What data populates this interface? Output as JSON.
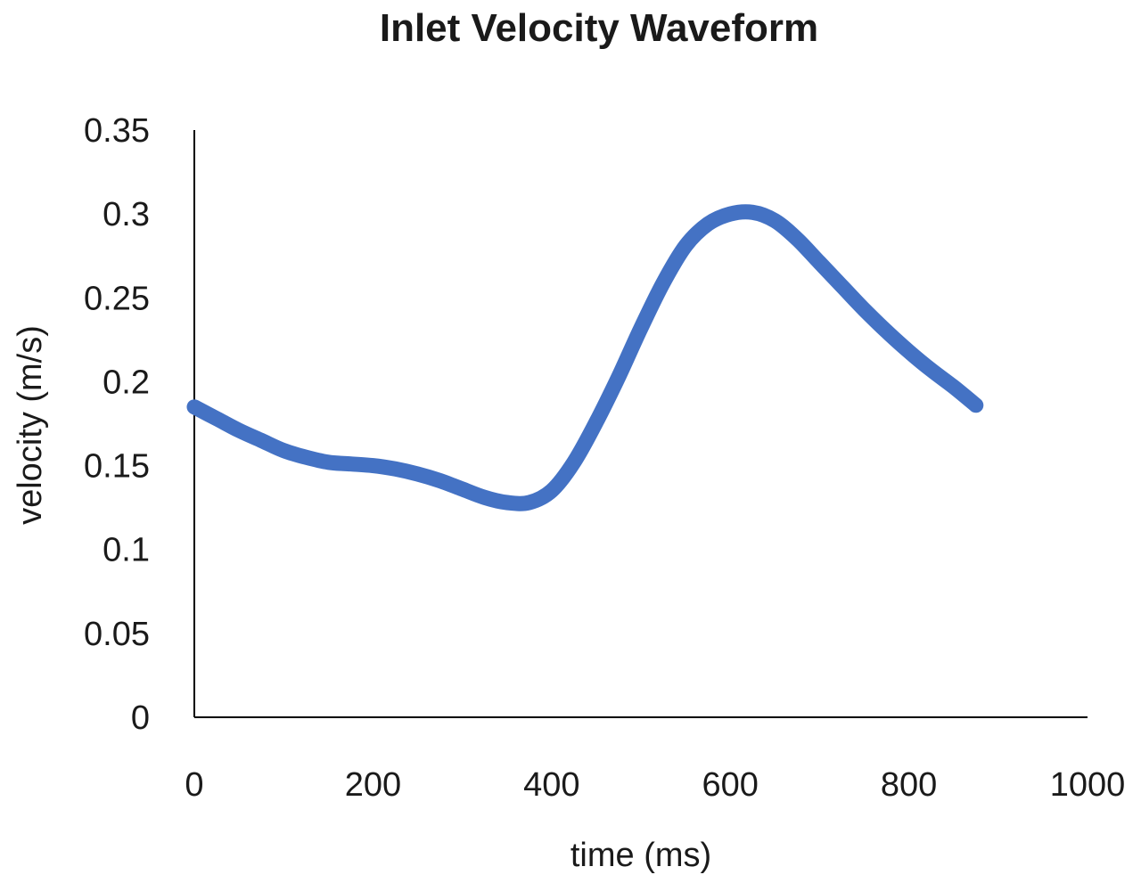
{
  "chart_data": {
    "type": "line",
    "title": "Inlet Velocity Waveform",
    "xlabel": "time (ms)",
    "ylabel": "velocity (m/s)",
    "xlim": [
      0,
      1000
    ],
    "ylim": [
      0,
      0.35
    ],
    "x_ticks": [
      "0",
      "200",
      "400",
      "600",
      "800",
      "1000"
    ],
    "y_ticks": [
      "0",
      "0.05",
      "0.1",
      "0.15",
      "0.2",
      "0.25",
      "0.3",
      "0.35"
    ],
    "grid": false,
    "legend": "none",
    "series_color": "#4472C4",
    "series": [
      {
        "x": [
          0,
          25,
          50,
          75,
          100,
          125,
          150,
          175,
          200,
          225,
          250,
          275,
          300,
          325,
          350,
          375,
          400,
          425,
          450,
          475,
          500,
          525,
          550,
          575,
          600,
          625,
          650,
          675,
          700,
          725,
          750,
          775,
          800,
          825,
          850,
          875
        ],
        "values": [
          0.185,
          0.178,
          0.171,
          0.165,
          0.159,
          0.155,
          0.152,
          0.151,
          0.15,
          0.148,
          0.145,
          0.141,
          0.136,
          0.131,
          0.128,
          0.128,
          0.135,
          0.152,
          0.176,
          0.203,
          0.232,
          0.259,
          0.281,
          0.294,
          0.3,
          0.301,
          0.296,
          0.285,
          0.271,
          0.257,
          0.243,
          0.23,
          0.218,
          0.207,
          0.197,
          0.186
        ]
      }
    ]
  }
}
